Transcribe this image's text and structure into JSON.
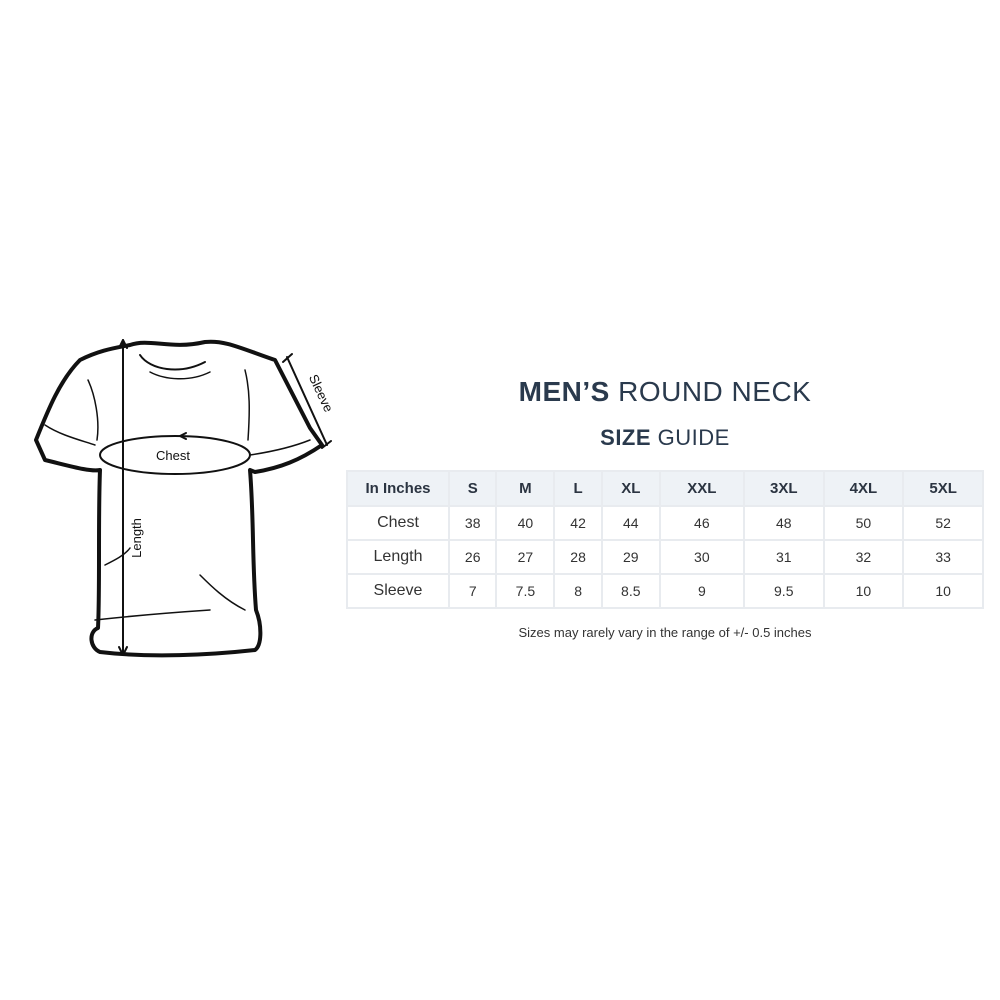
{
  "title": {
    "bold": "MEN’S",
    "light": "ROUND NECK"
  },
  "subtitle": {
    "bold": "SIZE",
    "light": "GUIDE"
  },
  "illustration": {
    "labels": {
      "chest": "Chest",
      "length": "Length",
      "sleeve": "Sleeve"
    }
  },
  "table": {
    "headers": [
      "In Inches",
      "S",
      "M",
      "L",
      "XL",
      "XXL",
      "3XL",
      "4XL",
      "5XL"
    ],
    "rows": [
      {
        "label": "Chest",
        "values": [
          "38",
          "40",
          "42",
          "44",
          "46",
          "48",
          "50",
          "52"
        ]
      },
      {
        "label": "Length",
        "values": [
          "26",
          "27",
          "28",
          "29",
          "30",
          "31",
          "32",
          "33"
        ]
      },
      {
        "label": "Sleeve",
        "values": [
          "7",
          "7.5",
          "8",
          "8.5",
          "9",
          "9.5",
          "10",
          "10"
        ]
      }
    ]
  },
  "note": "Sizes may rarely vary in the range of +/- 0.5 inches",
  "colors": {
    "heading": "#2a3a4d",
    "header_bg": "#eef2f6",
    "border": "#e8ebef"
  }
}
